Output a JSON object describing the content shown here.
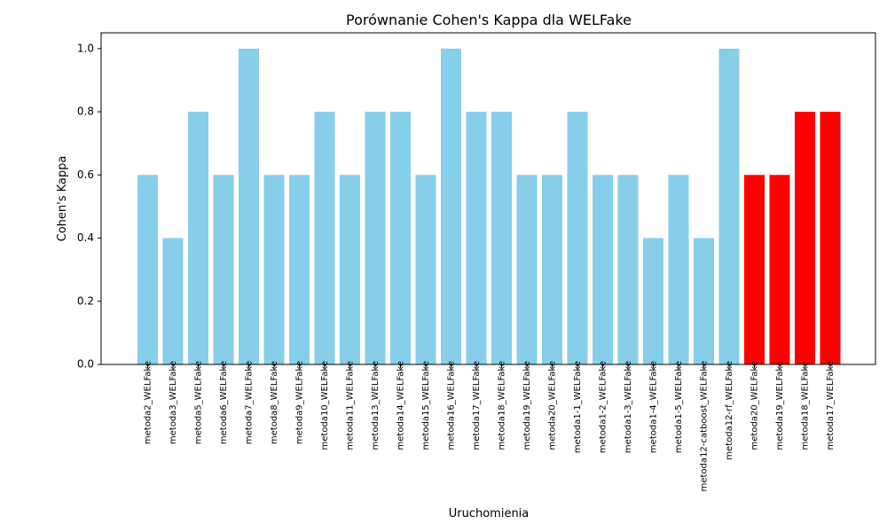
{
  "chart_data": {
    "type": "bar",
    "title": "Porównanie Cohen's Kappa dla WELFake",
    "xlabel": "Uruchomienia",
    "ylabel": "Cohen's Kappa",
    "ylim": [
      0,
      1.05
    ],
    "yticks": [
      0.0,
      0.2,
      0.4,
      0.6,
      0.8,
      1.0
    ],
    "ytick_labels": [
      "0.0",
      "0.2",
      "0.4",
      "0.6",
      "0.8",
      "1.0"
    ],
    "grid": false,
    "legend": "none",
    "categories": [
      "metoda2_WELFake",
      "metoda3_WELFake",
      "metoda5_WELFake",
      "metoda6_WELFake",
      "metoda7_WELFake",
      "metoda8_WELFake",
      "metoda9_WELFake",
      "metoda10_WELFake",
      "metoda11_WELFake",
      "metoda13_WELFake",
      "metoda14_WELFake",
      "metoda15_WELFake",
      "metoda16_WELFake",
      "metoda17_WELFake",
      "metoda18_WELFake",
      "metoda19_WELFake",
      "metoda20_WELFake",
      "metoda1-1_WELFake",
      "metoda1-2_WELFake",
      "metoda1-3_WELFake",
      "metoda1-4_WELFake",
      "metoda1-5_WELFake",
      "metoda12-catboost_WELFake",
      "metoda12-rf_WELFake",
      "metoda20_WELFake",
      "metoda19_WELFake",
      "metoda18_WELFake",
      "metoda17_WELFake"
    ],
    "values": [
      0.6,
      0.4,
      0.8,
      0.6,
      1.0,
      0.6,
      0.6,
      0.8,
      0.6,
      0.8,
      0.8,
      0.6,
      1.0,
      0.8,
      0.8,
      0.6,
      0.6,
      0.8,
      0.6,
      0.6,
      0.4,
      0.6,
      0.4,
      1.0,
      0.6,
      0.6,
      0.8,
      0.8
    ],
    "bar_colors": [
      "#87ceeb",
      "#87ceeb",
      "#87ceeb",
      "#87ceeb",
      "#87ceeb",
      "#87ceeb",
      "#87ceeb",
      "#87ceeb",
      "#87ceeb",
      "#87ceeb",
      "#87ceeb",
      "#87ceeb",
      "#87ceeb",
      "#87ceeb",
      "#87ceeb",
      "#87ceeb",
      "#87ceeb",
      "#87ceeb",
      "#87ceeb",
      "#87ceeb",
      "#87ceeb",
      "#87ceeb",
      "#87ceeb",
      "#87ceeb",
      "#ff0000",
      "#ff0000",
      "#ff0000",
      "#ff0000"
    ]
  }
}
